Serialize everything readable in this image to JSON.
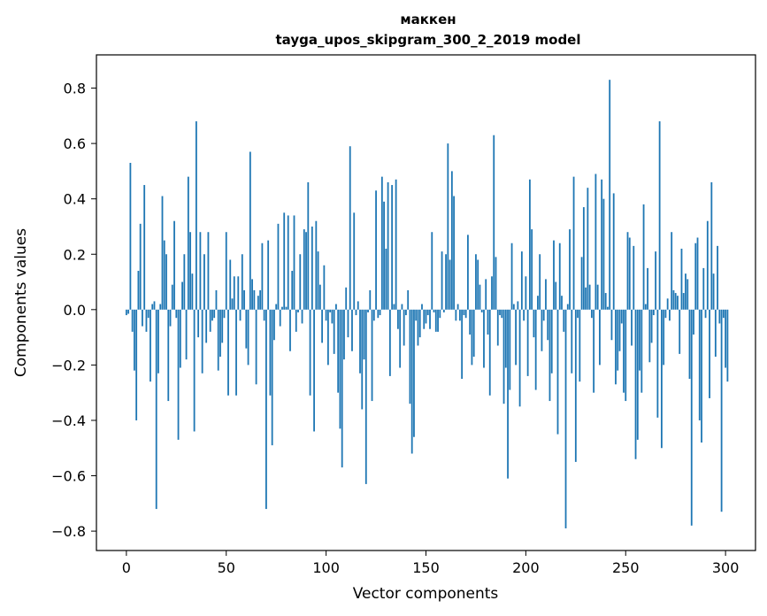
{
  "chart_data": {
    "type": "bar",
    "title_line1": "маккен",
    "title_line2": "tayga_upos_skipgram_300_2_2019 model",
    "xlabel": "Vector components",
    "ylabel": "Components values",
    "xlim": [
      -15,
      315
    ],
    "ylim": [
      -0.87,
      0.92
    ],
    "xticks": [
      0,
      50,
      100,
      150,
      200,
      250,
      300
    ],
    "xtick_labels": [
      "0",
      "50",
      "100",
      "150",
      "200",
      "250",
      "300"
    ],
    "yticks": [
      -0.8,
      -0.6,
      -0.4,
      -0.2,
      0.0,
      0.2,
      0.4,
      0.6,
      0.8
    ],
    "ytick_labels": [
      "−0.8",
      "−0.6",
      "−0.4",
      "−0.2",
      "0.0",
      "0.2",
      "0.4",
      "0.6",
      "0.8"
    ],
    "bar_color": "#1f77b4",
    "grid": false,
    "values": [
      -0.02,
      -0.015,
      0.53,
      -0.08,
      -0.22,
      -0.4,
      0.14,
      0.31,
      -0.06,
      0.45,
      -0.08,
      -0.03,
      -0.26,
      0.02,
      0.03,
      -0.72,
      -0.23,
      0.02,
      0.41,
      0.25,
      0.2,
      -0.33,
      -0.06,
      0.09,
      0.32,
      -0.03,
      -0.47,
      -0.21,
      0.1,
      0.2,
      -0.18,
      0.48,
      0.28,
      0.13,
      -0.44,
      0.68,
      -0.1,
      0.28,
      -0.23,
      0.2,
      -0.12,
      0.28,
      -0.08,
      -0.04,
      -0.03,
      0.07,
      -0.22,
      -0.17,
      -0.12,
      -0.03,
      0.28,
      -0.31,
      0.18,
      0.04,
      0.12,
      -0.31,
      0.12,
      -0.04,
      0.2,
      0.07,
      -0.14,
      -0.2,
      0.57,
      0.11,
      0.07,
      -0.27,
      0.05,
      0.07,
      0.24,
      -0.04,
      -0.72,
      0.25,
      -0.31,
      -0.49,
      -0.11,
      0.02,
      0.31,
      -0.06,
      0.01,
      0.35,
      0.01,
      0.34,
      -0.15,
      0.14,
      0.34,
      -0.08,
      -0.01,
      0.2,
      -0.05,
      0.29,
      0.28,
      0.46,
      -0.31,
      0.3,
      -0.44,
      0.32,
      0.21,
      0.09,
      -0.12,
      0.16,
      -0.04,
      -0.2,
      -0.01,
      -0.05,
      -0.16,
      0.02,
      -0.3,
      -0.43,
      -0.57,
      -0.18,
      0.08,
      -0.1,
      0.59,
      -0.15,
      0.35,
      -0.02,
      0.03,
      -0.23,
      -0.36,
      -0.18,
      -0.63,
      -0.01,
      0.07,
      -0.33,
      -0.04,
      0.43,
      -0.03,
      -0.02,
      0.48,
      0.39,
      0.22,
      0.46,
      -0.24,
      0.45,
      0.02,
      0.47,
      -0.07,
      -0.21,
      0.02,
      -0.13,
      -0.02,
      0.07,
      -0.34,
      -0.52,
      -0.46,
      -0.04,
      -0.13,
      -0.1,
      0.02,
      -0.07,
      -0.05,
      -0.02,
      -0.07,
      0.28,
      -0.01,
      -0.08,
      -0.08,
      -0.03,
      0.21,
      -0.01,
      0.2,
      0.6,
      0.18,
      0.5,
      0.41,
      -0.04,
      0.02,
      -0.04,
      -0.25,
      -0.02,
      -0.03,
      0.27,
      -0.09,
      -0.2,
      -0.17,
      0.2,
      0.18,
      0.09,
      -0.01,
      -0.21,
      0.11,
      -0.09,
      -0.31,
      0.12,
      0.63,
      0.19,
      -0.13,
      -0.02,
      -0.03,
      -0.34,
      -0.21,
      -0.61,
      -0.29,
      0.24,
      0.02,
      -0.2,
      0.03,
      -0.35,
      0.21,
      -0.04,
      0.12,
      -0.24,
      0.47,
      0.29,
      -0.1,
      -0.29,
      0.05,
      0.2,
      -0.15,
      -0.04,
      0.11,
      -0.11,
      -0.33,
      -0.23,
      0.25,
      0.1,
      -0.45,
      0.24,
      0.05,
      -0.08,
      -0.79,
      0.02,
      0.29,
      -0.23,
      0.48,
      -0.55,
      -0.03,
      -0.26,
      0.19,
      0.37,
      0.08,
      0.44,
      0.09,
      -0.03,
      -0.3,
      0.49,
      0.09,
      -0.2,
      0.47,
      0.4,
      0.06,
      0.01,
      0.83,
      -0.11,
      0.42,
      -0.27,
      -0.22,
      -0.15,
      -0.05,
      -0.3,
      -0.33,
      0.28,
      0.26,
      -0.13,
      0.23,
      -0.54,
      -0.47,
      -0.22,
      -0.3,
      0.38,
      0.02,
      0.15,
      -0.19,
      -0.12,
      -0.02,
      0.21,
      -0.39,
      0.68,
      -0.5,
      -0.2,
      -0.03,
      0.04,
      -0.04,
      0.28,
      0.07,
      0.06,
      0.05,
      -0.16,
      0.22,
      0.06,
      0.13,
      0.11,
      -0.25,
      -0.78,
      -0.09,
      0.24,
      0.26,
      -0.4,
      -0.48,
      0.15,
      -0.03,
      0.32,
      -0.32,
      0.46,
      0.13,
      -0.17,
      0.23,
      -0.05,
      -0.73,
      -0.03,
      -0.21,
      -0.26
    ]
  }
}
